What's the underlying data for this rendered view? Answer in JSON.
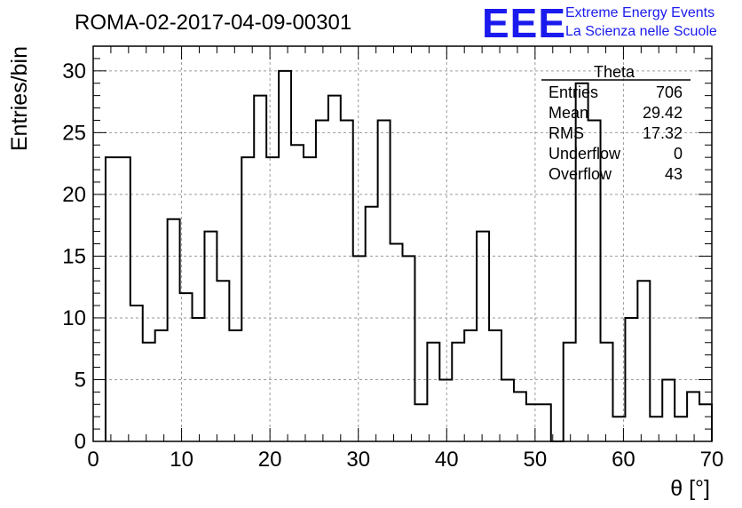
{
  "chart_data": {
    "type": "bar",
    "style": "step-histogram",
    "title": "ROMA-02-2017-04-09-00301",
    "xlabel": "θ [°]",
    "ylabel": "Entries/bin",
    "xlim": [
      0,
      70
    ],
    "ylim": [
      0,
      32
    ],
    "x_ticks": [
      0,
      10,
      20,
      30,
      40,
      50,
      60,
      70
    ],
    "y_ticks": [
      0,
      5,
      10,
      15,
      20,
      25,
      30
    ],
    "grid": true,
    "bin_width": 1.4,
    "bin_start": 1.4,
    "values": [
      23,
      23,
      11,
      8,
      9,
      18,
      12,
      10,
      17,
      13,
      9,
      23,
      28,
      23,
      30,
      24,
      23,
      26,
      28,
      26,
      15,
      19,
      26,
      16,
      15,
      3,
      8,
      5,
      8,
      9,
      17,
      9,
      5,
      4,
      3,
      3,
      0,
      8,
      29,
      26,
      8,
      2,
      10,
      13,
      2,
      5,
      2,
      4,
      3
    ]
  },
  "stats_box": {
    "title": "Theta",
    "rows": [
      {
        "label": "Entries",
        "value": "706"
      },
      {
        "label": "Mean",
        "value": "29.42"
      },
      {
        "label": "RMS",
        "value": "17.32"
      },
      {
        "label": "Underflow",
        "value": "0"
      },
      {
        "label": "Overflow",
        "value": "43"
      }
    ]
  },
  "logo": {
    "mark": "EEE",
    "line1": "Extreme Energy Events",
    "line2": "La Scienza nelle Scuole",
    "color": "#1a1aee"
  }
}
